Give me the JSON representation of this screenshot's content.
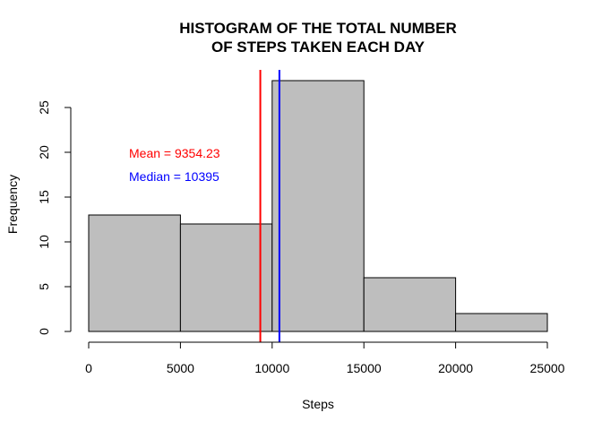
{
  "chart_data": {
    "type": "bar",
    "title_lines": [
      "HISTOGRAM OF THE TOTAL NUMBER",
      "OF STEPS TAKEN EACH DAY"
    ],
    "xlabel": "Steps",
    "ylabel": "Frequency",
    "bins": [
      {
        "start": 0,
        "end": 5000,
        "count": 13
      },
      {
        "start": 5000,
        "end": 10000,
        "count": 12
      },
      {
        "start": 10000,
        "end": 15000,
        "count": 28
      },
      {
        "start": 15000,
        "end": 20000,
        "count": 6
      },
      {
        "start": 20000,
        "end": 25000,
        "count": 2
      }
    ],
    "xlim": [
      0,
      25000
    ],
    "ylim": [
      0,
      28
    ],
    "xticks": [
      0,
      5000,
      10000,
      15000,
      20000,
      25000
    ],
    "xtick_labels": [
      "0",
      "5000",
      "10000",
      "15000",
      "20000",
      "25000"
    ],
    "yticks": [
      0,
      5,
      10,
      15,
      20,
      25
    ],
    "ytick_labels": [
      "0",
      "5",
      "10",
      "15",
      "20",
      "25"
    ],
    "bar_fill": "#bebebe",
    "bar_stroke": "#000000",
    "grid": false,
    "vlines": [
      {
        "value": 9354.23,
        "color": "#ff0000",
        "label": "Mean = 9354.23"
      },
      {
        "value": 10395,
        "color": "#0000ff",
        "label": "Median = 10395"
      }
    ]
  }
}
